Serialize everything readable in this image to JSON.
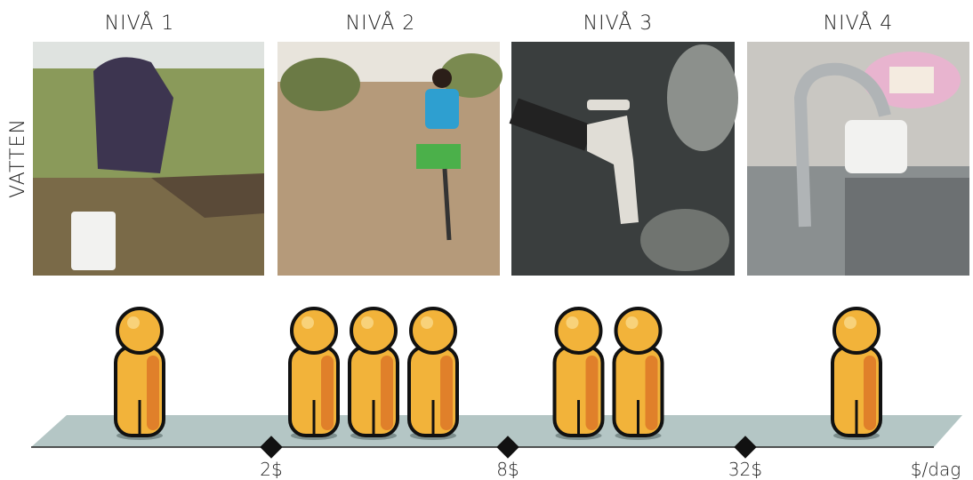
{
  "row_label": "VATTEN",
  "levels": [
    {
      "title": "NIVÅ 1",
      "people": 1
    },
    {
      "title": "NIVÅ 2",
      "people": 3
    },
    {
      "title": "NIVÅ 3",
      "people": 2
    },
    {
      "title": "NIVÅ 4",
      "people": 1
    }
  ],
  "axis": {
    "ticks": [
      "2$",
      "8$",
      "32$"
    ],
    "unit": "$/dag"
  }
}
